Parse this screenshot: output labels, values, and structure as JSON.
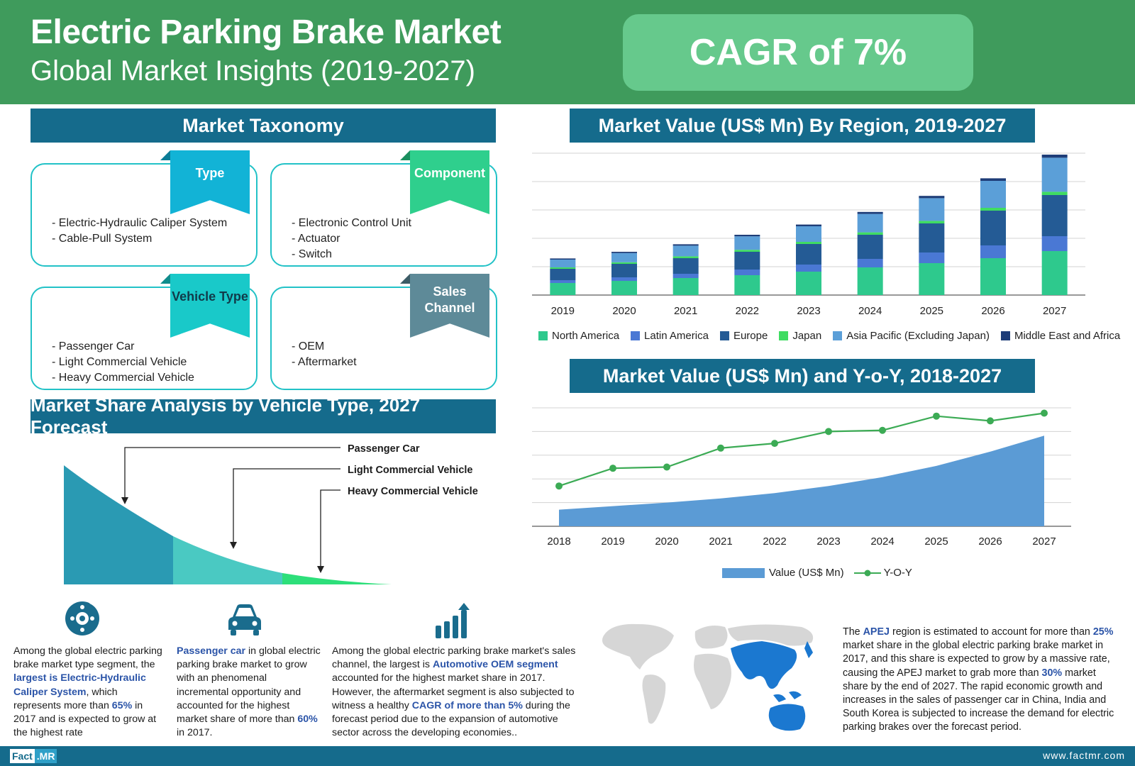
{
  "header": {
    "title": "Electric Parking Brake Market",
    "subtitle": "Global Market Insights (2019-2027)",
    "cagr": "CAGR of 7%"
  },
  "taxonomy": {
    "title": "Market Taxonomy",
    "cards": [
      {
        "tag": "Type",
        "color": "#12b3d6",
        "items": [
          "- Electric-Hydraulic Caliper System",
          "- Cable-Pull System"
        ]
      },
      {
        "tag": "Component",
        "color": "#2fcf8d",
        "items": [
          "- Electronic Control Unit",
          "- Actuator",
          "- Switch"
        ]
      },
      {
        "tag": "Vehicle Type",
        "color": "#19c9c9",
        "items": [
          "- Passenger Car",
          "- Light Commercial Vehicle",
          "- Heavy Commercial Vehicle"
        ]
      },
      {
        "tag": "Sales Channel",
        "color": "#5e8a98",
        "items": [
          "- OEM",
          "- Aftermarket"
        ]
      }
    ]
  },
  "share": {
    "title": "Market Share Analysis by Vehicle Type, 2027 Forecast",
    "labels": [
      "Passenger Car",
      "Light Commercial Vehicle",
      "Heavy Commercial Vehicle"
    ],
    "colors": [
      "#2a9ab3",
      "#4ac9c2",
      "#2ddf7a"
    ]
  },
  "region_chart": {
    "title": "Market Value (US$ Mn) By Region, 2019-2027"
  },
  "yoy_chart": {
    "title": "Market Value (US$ Mn) and Y-o-Y, 2018-2027"
  },
  "chart_data": [
    {
      "type": "bar",
      "stacked": true,
      "title": "Market Value (US$ Mn) By Region, 2019-2027",
      "categories": [
        "2019",
        "2020",
        "2021",
        "2022",
        "2023",
        "2024",
        "2025",
        "2026",
        "2027"
      ],
      "ylim": [
        0,
        100
      ],
      "grid": true,
      "legend_position": "bottom",
      "series": [
        {
          "name": "North America",
          "color": "#2ec98d",
          "values": [
            8.5,
            10,
            12,
            14,
            16.5,
            19.5,
            22.5,
            26,
            31
          ]
        },
        {
          "name": "Latin America",
          "color": "#4a78d4",
          "values": [
            2,
            2.5,
            3,
            4,
            5,
            6,
            7.5,
            9,
            10.5
          ]
        },
        {
          "name": "Europe",
          "color": "#245b95",
          "values": [
            8,
            9.5,
            11,
            12.5,
            14.5,
            17,
            20.5,
            24.5,
            29
          ]
        },
        {
          "name": "Japan",
          "color": "#3fdc62",
          "values": [
            1,
            1.1,
            1.3,
            1.4,
            1.5,
            1.7,
            1.8,
            2,
            2.3
          ]
        },
        {
          "name": "Asia Pacific (Excluding Japan)",
          "color": "#5b9fd8",
          "values": [
            5.5,
            6.5,
            7.5,
            9.5,
            11,
            13,
            16,
            19,
            24
          ]
        },
        {
          "name": "Middle East and Africa",
          "color": "#1e3d78",
          "values": [
            0.8,
            0.9,
            1,
            1.1,
            1.2,
            1.4,
            1.6,
            1.8,
            2.2
          ]
        }
      ]
    },
    {
      "type": "area",
      "title": "Market Value (US$ Mn) and Y-o-Y, 2018-2027",
      "categories": [
        "2018",
        "2019",
        "2020",
        "2021",
        "2022",
        "2023",
        "2024",
        "2025",
        "2026",
        "2027"
      ],
      "ylim": [
        0,
        100
      ],
      "grid": true,
      "legend_position": "bottom",
      "series": [
        {
          "name": "Value (US$ Mn)",
          "type": "area",
          "color": "#5b9bd5",
          "values": [
            14,
            17,
            20,
            23.5,
            28,
            34,
            41.5,
            51,
            63,
            76.5
          ]
        },
        {
          "name": "Y-O-Y",
          "type": "line",
          "color": "#3cab55",
          "values": [
            34,
            49,
            50,
            66,
            70,
            80,
            81,
            93,
            89,
            95.5
          ]
        }
      ]
    }
  ],
  "info": {
    "p1": {
      "a": "Among the global electric parking brake market type segment, the ",
      "b": "largest is Electric-Hydraulic Caliper System",
      "c": ", which represents more than ",
      "d": "65%",
      "e": " in 2017 and is expected to grow at the highest rate"
    },
    "p2": {
      "a": "Passenger car",
      "b": " in global electric parking brake market to grow with an phenomenal incremental opportunity and accounted for the highest market share of more than ",
      "c": "60%",
      "d": " in 2017."
    },
    "p3": {
      "a": "Among the global electric parking brake market's sales channel, the largest is ",
      "b": "Automotive OEM segment",
      "c": " accounted for the highest market share in 2017. However, the aftermarket segment is also subjected to witness a healthy ",
      "d": "CAGR of more than 5%",
      "e": " during the forecast period due to the expansion of automotive sector across the developing economies.."
    },
    "p4": {
      "a": "The ",
      "b": "APEJ",
      "c": " region is estimated to account for more than ",
      "d": "25%",
      "e": " market share in the global electric parking brake market in 2017, and this share is expected to grow by a massive rate, causing the APEJ market to grab more than ",
      "f": "30%",
      "g": " market share by the end of 2027. The rapid economic growth and increases in the sales of passenger car in China, India and South Korea is subjected to increase the demand for electric parking brakes over the forecast period."
    }
  },
  "footer": {
    "logo_a": "Fact",
    "logo_b": ".MR",
    "url": "www.factmr.com"
  }
}
